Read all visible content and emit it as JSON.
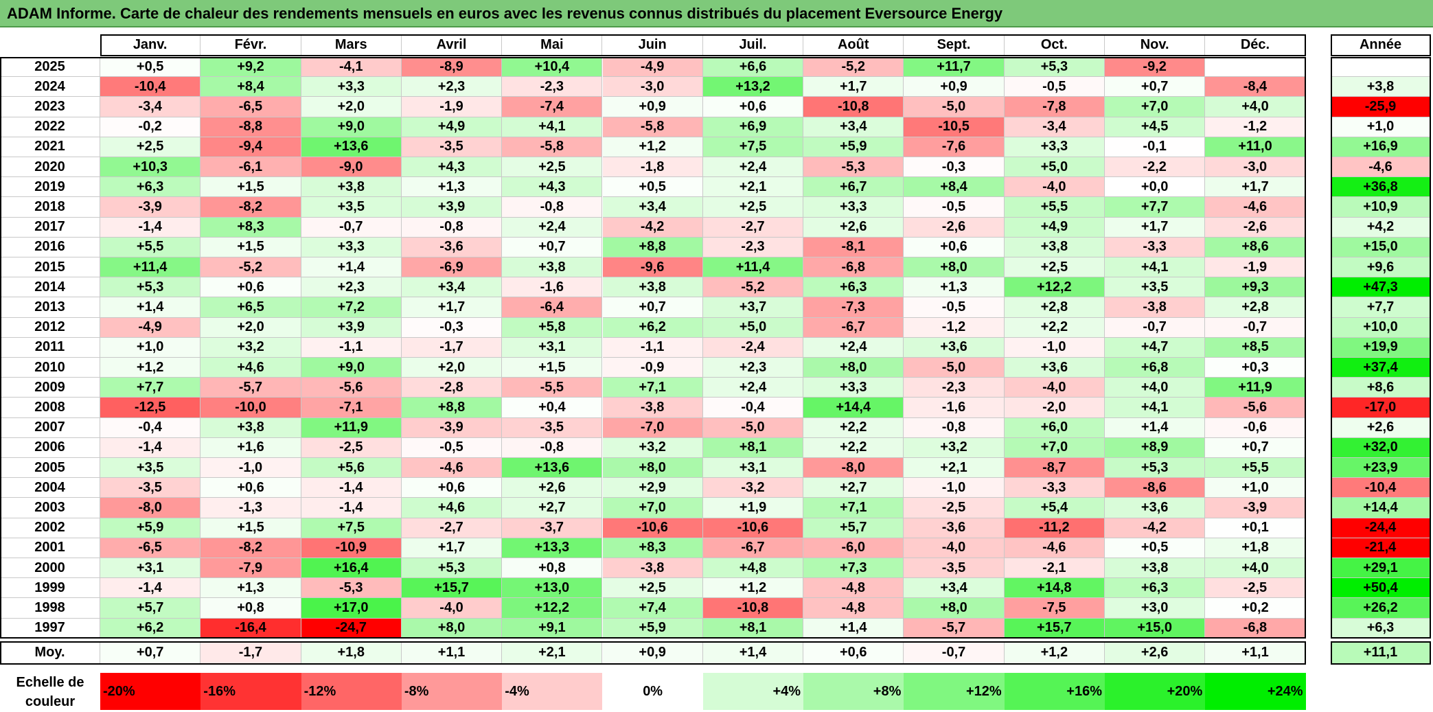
{
  "title": "ADAM Informe. Carte de chaleur des rendements mensuels en euros avec les revenus connus distribués du placement Eversource Energy",
  "chart_data": {
    "type": "heatmap",
    "title": "ADAM Informe. Carte de chaleur des rendements mensuels en euros avec les revenus connus distribués du placement Eversource Energy",
    "columns": [
      "Janv.",
      "Févr.",
      "Mars",
      "Avril",
      "Mai",
      "Juin",
      "Juil.",
      "Août",
      "Sept.",
      "Oct.",
      "Nov.",
      "Déc."
    ],
    "annual_header": "Année",
    "rows": [
      {
        "year": "2025",
        "values": [
          "+0,5",
          "+9,2",
          "-4,1",
          "-8,9",
          "+10,4",
          "-4,9",
          "+6,6",
          "-5,2",
          "+11,7",
          "+5,3",
          "-9,2",
          ""
        ],
        "annual": ""
      },
      {
        "year": "2024",
        "values": [
          "-10,4",
          "+8,4",
          "+3,3",
          "+2,3",
          "-2,3",
          "-3,0",
          "+13,2",
          "+1,7",
          "+0,9",
          "-0,5",
          "+0,7",
          "-8,4"
        ],
        "annual": "+3,8"
      },
      {
        "year": "2023",
        "values": [
          "-3,4",
          "-6,5",
          "+2,0",
          "-1,9",
          "-7,4",
          "+0,9",
          "+0,6",
          "-10,8",
          "-5,0",
          "-7,8",
          "+7,0",
          "+4,0"
        ],
        "annual": "-25,9"
      },
      {
        "year": "2022",
        "values": [
          "-0,2",
          "-8,8",
          "+9,0",
          "+4,9",
          "+4,1",
          "-5,8",
          "+6,9",
          "+3,4",
          "-10,5",
          "-3,4",
          "+4,5",
          "-1,2"
        ],
        "annual": "+1,0"
      },
      {
        "year": "2021",
        "values": [
          "+2,5",
          "-9,4",
          "+13,6",
          "-3,5",
          "-5,8",
          "+1,2",
          "+7,5",
          "+5,9",
          "-7,6",
          "+3,3",
          "-0,1",
          "+11,0"
        ],
        "annual": "+16,9"
      },
      {
        "year": "2020",
        "values": [
          "+10,3",
          "-6,1",
          "-9,0",
          "+4,3",
          "+2,5",
          "-1,8",
          "+2,4",
          "-5,3",
          "-0,3",
          "+5,0",
          "-2,2",
          "-3,0"
        ],
        "annual": "-4,6"
      },
      {
        "year": "2019",
        "values": [
          "+6,3",
          "+1,5",
          "+3,8",
          "+1,3",
          "+4,3",
          "+0,5",
          "+2,1",
          "+6,7",
          "+8,4",
          "-4,0",
          "+0,0",
          "+1,7"
        ],
        "annual": "+36,8"
      },
      {
        "year": "2018",
        "values": [
          "-3,9",
          "-8,2",
          "+3,5",
          "+3,9",
          "-0,8",
          "+3,4",
          "+2,5",
          "+3,3",
          "-0,5",
          "+5,5",
          "+7,7",
          "-4,6"
        ],
        "annual": "+10,9"
      },
      {
        "year": "2017",
        "values": [
          "-1,4",
          "+8,3",
          "-0,7",
          "-0,8",
          "+2,4",
          "-4,2",
          "-2,7",
          "+2,6",
          "-2,6",
          "+4,9",
          "+1,7",
          "-2,6"
        ],
        "annual": "+4,2"
      },
      {
        "year": "2016",
        "values": [
          "+5,5",
          "+1,5",
          "+3,3",
          "-3,6",
          "+0,7",
          "+8,8",
          "-2,3",
          "-8,1",
          "+0,6",
          "+3,8",
          "-3,3",
          "+8,6"
        ],
        "annual": "+15,0"
      },
      {
        "year": "2015",
        "values": [
          "+11,4",
          "-5,2",
          "+1,4",
          "-6,9",
          "+3,8",
          "-9,6",
          "+11,4",
          "-6,8",
          "+8,0",
          "+2,5",
          "+4,1",
          "-1,9"
        ],
        "annual": "+9,6"
      },
      {
        "year": "2014",
        "values": [
          "+5,3",
          "+0,6",
          "+2,3",
          "+3,4",
          "-1,6",
          "+3,8",
          "-5,2",
          "+6,3",
          "+1,3",
          "+12,2",
          "+3,5",
          "+9,3"
        ],
        "annual": "+47,3"
      },
      {
        "year": "2013",
        "values": [
          "+1,4",
          "+6,5",
          "+7,2",
          "+1,7",
          "-6,4",
          "+0,7",
          "+3,7",
          "-7,3",
          "-0,5",
          "+2,8",
          "-3,8",
          "+2,8"
        ],
        "annual": "+7,7"
      },
      {
        "year": "2012",
        "values": [
          "-4,9",
          "+2,0",
          "+3,9",
          "-0,3",
          "+5,8",
          "+6,2",
          "+5,0",
          "-6,7",
          "-1,2",
          "+2,2",
          "-0,7",
          "-0,7"
        ],
        "annual": "+10,0"
      },
      {
        "year": "2011",
        "values": [
          "+1,0",
          "+3,2",
          "-1,1",
          "-1,7",
          "+3,1",
          "-1,1",
          "-2,4",
          "+2,4",
          "+3,6",
          "-1,0",
          "+4,7",
          "+8,5"
        ],
        "annual": "+19,9"
      },
      {
        "year": "2010",
        "values": [
          "+1,2",
          "+4,6",
          "+9,0",
          "+2,0",
          "+1,5",
          "-0,9",
          "+2,3",
          "+8,0",
          "-5,0",
          "+3,6",
          "+6,8",
          "+0,3"
        ],
        "annual": "+37,4"
      },
      {
        "year": "2009",
        "values": [
          "+7,7",
          "-5,7",
          "-5,6",
          "-2,8",
          "-5,5",
          "+7,1",
          "+2,4",
          "+3,3",
          "-2,3",
          "-4,0",
          "+4,0",
          "+11,9"
        ],
        "annual": "+8,6"
      },
      {
        "year": "2008",
        "values": [
          "-12,5",
          "-10,0",
          "-7,1",
          "+8,8",
          "+0,4",
          "-3,8",
          "-0,4",
          "+14,4",
          "-1,6",
          "-2,0",
          "+4,1",
          "-5,6"
        ],
        "annual": "-17,0"
      },
      {
        "year": "2007",
        "values": [
          "-0,4",
          "+3,8",
          "+11,9",
          "-3,9",
          "-3,5",
          "-7,0",
          "-5,0",
          "+2,2",
          "-0,8",
          "+6,0",
          "+1,4",
          "-0,6"
        ],
        "annual": "+2,6"
      },
      {
        "year": "2006",
        "values": [
          "-1,4",
          "+1,6",
          "-2,5",
          "-0,5",
          "-0,8",
          "+3,2",
          "+8,1",
          "+2,2",
          "+3,2",
          "+7,0",
          "+8,9",
          "+0,7"
        ],
        "annual": "+32,0"
      },
      {
        "year": "2005",
        "values": [
          "+3,5",
          "-1,0",
          "+5,6",
          "-4,6",
          "+13,6",
          "+8,0",
          "+3,1",
          "-8,0",
          "+2,1",
          "-8,7",
          "+5,3",
          "+5,5"
        ],
        "annual": "+23,9"
      },
      {
        "year": "2004",
        "values": [
          "-3,5",
          "+0,6",
          "-1,4",
          "+0,6",
          "+2,6",
          "+2,9",
          "-3,2",
          "+2,7",
          "-1,0",
          "-3,3",
          "-8,6",
          "+1,0"
        ],
        "annual": "-10,4"
      },
      {
        "year": "2003",
        "values": [
          "-8,0",
          "-1,3",
          "-1,4",
          "+4,6",
          "+2,7",
          "+7,0",
          "+1,9",
          "+7,1",
          "-2,5",
          "+5,4",
          "+3,6",
          "-3,9"
        ],
        "annual": "+14,4"
      },
      {
        "year": "2002",
        "values": [
          "+5,9",
          "+1,5",
          "+7,5",
          "-2,7",
          "-3,7",
          "-10,6",
          "-10,6",
          "+5,7",
          "-3,6",
          "-11,2",
          "-4,2",
          "+0,1"
        ],
        "annual": "-24,4"
      },
      {
        "year": "2001",
        "values": [
          "-6,5",
          "-8,2",
          "-10,9",
          "+1,7",
          "+13,3",
          "+8,3",
          "-6,7",
          "-6,0",
          "-4,0",
          "-4,6",
          "+0,5",
          "+1,8"
        ],
        "annual": "-21,4"
      },
      {
        "year": "2000",
        "values": [
          "+3,1",
          "-7,9",
          "+16,4",
          "+5,3",
          "+0,8",
          "-3,8",
          "+4,8",
          "+7,3",
          "-3,5",
          "-2,1",
          "+3,8",
          "+4,0"
        ],
        "annual": "+29,1"
      },
      {
        "year": "1999",
        "values": [
          "-1,4",
          "+1,3",
          "-5,3",
          "+15,7",
          "+13,0",
          "+2,5",
          "+1,2",
          "-4,8",
          "+3,4",
          "+14,8",
          "+6,3",
          "-2,5"
        ],
        "annual": "+50,4"
      },
      {
        "year": "1998",
        "values": [
          "+5,7",
          "+0,8",
          "+17,0",
          "-4,0",
          "+12,2",
          "+7,4",
          "-10,8",
          "-4,8",
          "+8,0",
          "-7,5",
          "+3,0",
          "+0,2"
        ],
        "annual": "+26,2"
      },
      {
        "year": "1997",
        "values": [
          "+6,2",
          "-16,4",
          "-24,7",
          "+8,0",
          "+9,1",
          "+5,9",
          "+8,1",
          "+1,4",
          "-5,7",
          "+15,7",
          "+15,0",
          "-6,8"
        ],
        "annual": "+6,3"
      }
    ],
    "average": {
      "label": "Moy.",
      "values": [
        "+0,7",
        "-1,7",
        "+1,8",
        "+1,1",
        "+2,1",
        "+0,9",
        "+1,4",
        "+0,6",
        "-0,7",
        "+1,2",
        "+2,6",
        "+1,1"
      ],
      "annual": "+11,1"
    },
    "scale": {
      "label": "Echelle de couleur",
      "stops": [
        "-20%",
        "-16%",
        "-12%",
        "-8%",
        "-4%",
        "0%",
        "+4%",
        "+8%",
        "+12%",
        "+16%",
        "+20%",
        "+24%"
      ],
      "stop_values": [
        -20,
        -16,
        -12,
        -8,
        -4,
        0,
        4,
        8,
        12,
        16,
        20,
        24
      ]
    },
    "colors": {
      "negative": "#ff0000",
      "neutral": "#ffffff",
      "positive": "#00ee00",
      "title_bg": "#7ec97a"
    }
  }
}
